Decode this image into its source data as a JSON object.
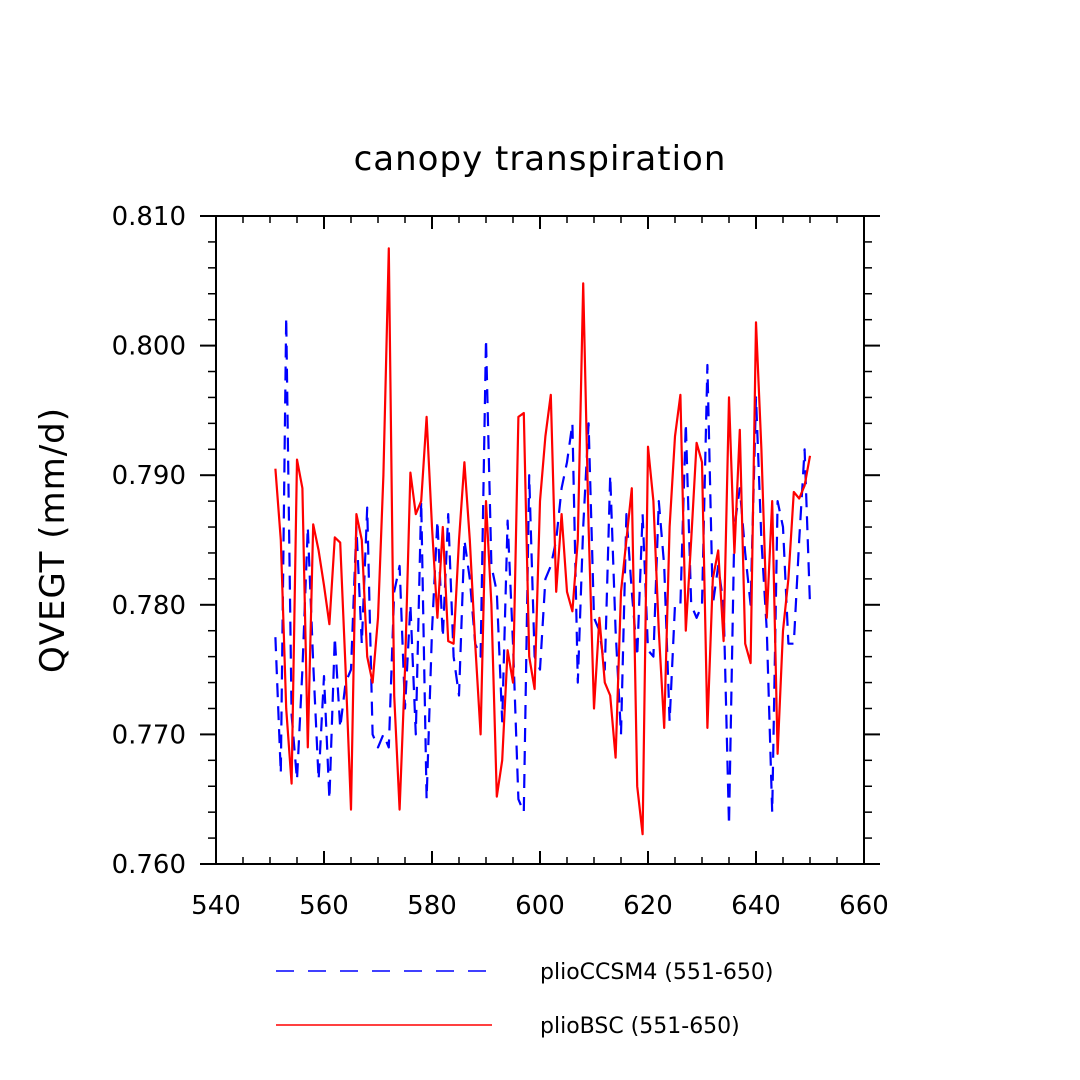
{
  "chart_data": {
    "type": "line",
    "title": "canopy transpiration",
    "xlabel": "",
    "ylabel": "QVEGT  (mm/d)",
    "xlim": [
      540,
      660
    ],
    "ylim": [
      0.76,
      0.81
    ],
    "x_ticks": [
      540,
      560,
      580,
      600,
      620,
      640,
      660
    ],
    "x_tick_labels": [
      "540",
      "560",
      "580",
      "600",
      "620",
      "640",
      "660"
    ],
    "y_ticks": [
      0.76,
      0.77,
      0.78,
      0.79,
      0.8,
      0.81
    ],
    "y_tick_labels": [
      "0.760",
      "0.770",
      "0.780",
      "0.790",
      "0.800",
      "0.810"
    ],
    "grid": false,
    "legend_position": "bottom",
    "x": [
      551,
      552,
      553,
      554,
      555,
      556,
      557,
      558,
      559,
      560,
      561,
      562,
      563,
      564,
      565,
      566,
      567,
      568,
      569,
      570,
      571,
      572,
      573,
      574,
      575,
      576,
      577,
      578,
      579,
      580,
      581,
      582,
      583,
      584,
      585,
      586,
      587,
      588,
      589,
      590,
      591,
      592,
      593,
      594,
      595,
      596,
      597,
      598,
      599,
      600,
      601,
      602,
      603,
      604,
      605,
      606,
      607,
      608,
      609,
      610,
      611,
      612,
      613,
      614,
      615,
      616,
      617,
      618,
      619,
      620,
      621,
      622,
      623,
      624,
      625,
      626,
      627,
      628,
      629,
      630,
      631,
      632,
      633,
      634,
      635,
      636,
      637,
      638,
      639,
      640,
      641,
      642,
      643,
      644,
      645,
      646,
      647,
      648,
      649,
      650
    ],
    "series": [
      {
        "name": "plioCCSM4 (551-650)",
        "color": "#0000ff",
        "dash": "dashed",
        "values": [
          0.7775,
          0.767,
          0.8022,
          0.7715,
          0.7665,
          0.775,
          0.786,
          0.7755,
          0.7665,
          0.7745,
          0.765,
          0.7775,
          0.7705,
          0.774,
          0.775,
          0.786,
          0.777,
          0.7875,
          0.77,
          0.769,
          0.77,
          0.769,
          0.781,
          0.783,
          0.772,
          0.78,
          0.77,
          0.788,
          0.765,
          0.778,
          0.7865,
          0.7775,
          0.787,
          0.776,
          0.773,
          0.785,
          0.782,
          0.777,
          0.776,
          0.8005,
          0.783,
          0.781,
          0.771,
          0.7865,
          0.777,
          0.765,
          0.764,
          0.79,
          0.776,
          0.775,
          0.782,
          0.783,
          0.785,
          0.789,
          0.791,
          0.794,
          0.774,
          0.786,
          0.794,
          0.779,
          0.778,
          0.775,
          0.79,
          0.778,
          0.77,
          0.787,
          0.781,
          0.776,
          0.787,
          0.7765,
          0.776,
          0.788,
          0.783,
          0.771,
          0.78,
          0.78,
          0.794,
          0.78,
          0.779,
          0.78,
          0.7985,
          0.78,
          0.783,
          0.78,
          0.763,
          0.786,
          0.789,
          0.784,
          0.78,
          0.796,
          0.785,
          0.778,
          0.764,
          0.788,
          0.786,
          0.777,
          0.777,
          0.785,
          0.792,
          0.78
        ]
      },
      {
        "name": "plioBSC (551-650)",
        "color": "#ff0000",
        "dash": "solid",
        "values": [
          0.7905,
          0.785,
          0.772,
          0.7662,
          0.7912,
          0.789,
          0.769,
          0.7862,
          0.7842,
          0.7815,
          0.7785,
          0.7852,
          0.7848,
          0.775,
          0.7642,
          0.787,
          0.785,
          0.776,
          0.774,
          0.779,
          0.79,
          0.8075,
          0.773,
          0.7642,
          0.775,
          0.7902,
          0.787,
          0.788,
          0.7945,
          0.786,
          0.779,
          0.786,
          0.7772,
          0.777,
          0.785,
          0.791,
          0.785,
          0.777,
          0.77,
          0.788,
          0.78,
          0.7652,
          0.768,
          0.7765,
          0.774,
          0.7945,
          0.7948,
          0.776,
          0.7735,
          0.788,
          0.793,
          0.7962,
          0.781,
          0.787,
          0.781,
          0.7795,
          0.785,
          0.8048,
          0.786,
          0.772,
          0.779,
          0.774,
          0.773,
          0.7682,
          0.781,
          0.785,
          0.789,
          0.766,
          0.7623,
          0.7922,
          0.788,
          0.778,
          0.7705,
          0.786,
          0.793,
          0.7962,
          0.778,
          0.785,
          0.7925,
          0.791,
          0.7705,
          0.782,
          0.7842,
          0.7772,
          0.796,
          0.784,
          0.7935,
          0.777,
          0.7755,
          0.8018,
          0.792,
          0.779,
          0.788,
          0.7685,
          0.778,
          0.782,
          0.7887,
          0.7882,
          0.7892,
          0.7915
        ]
      }
    ]
  }
}
